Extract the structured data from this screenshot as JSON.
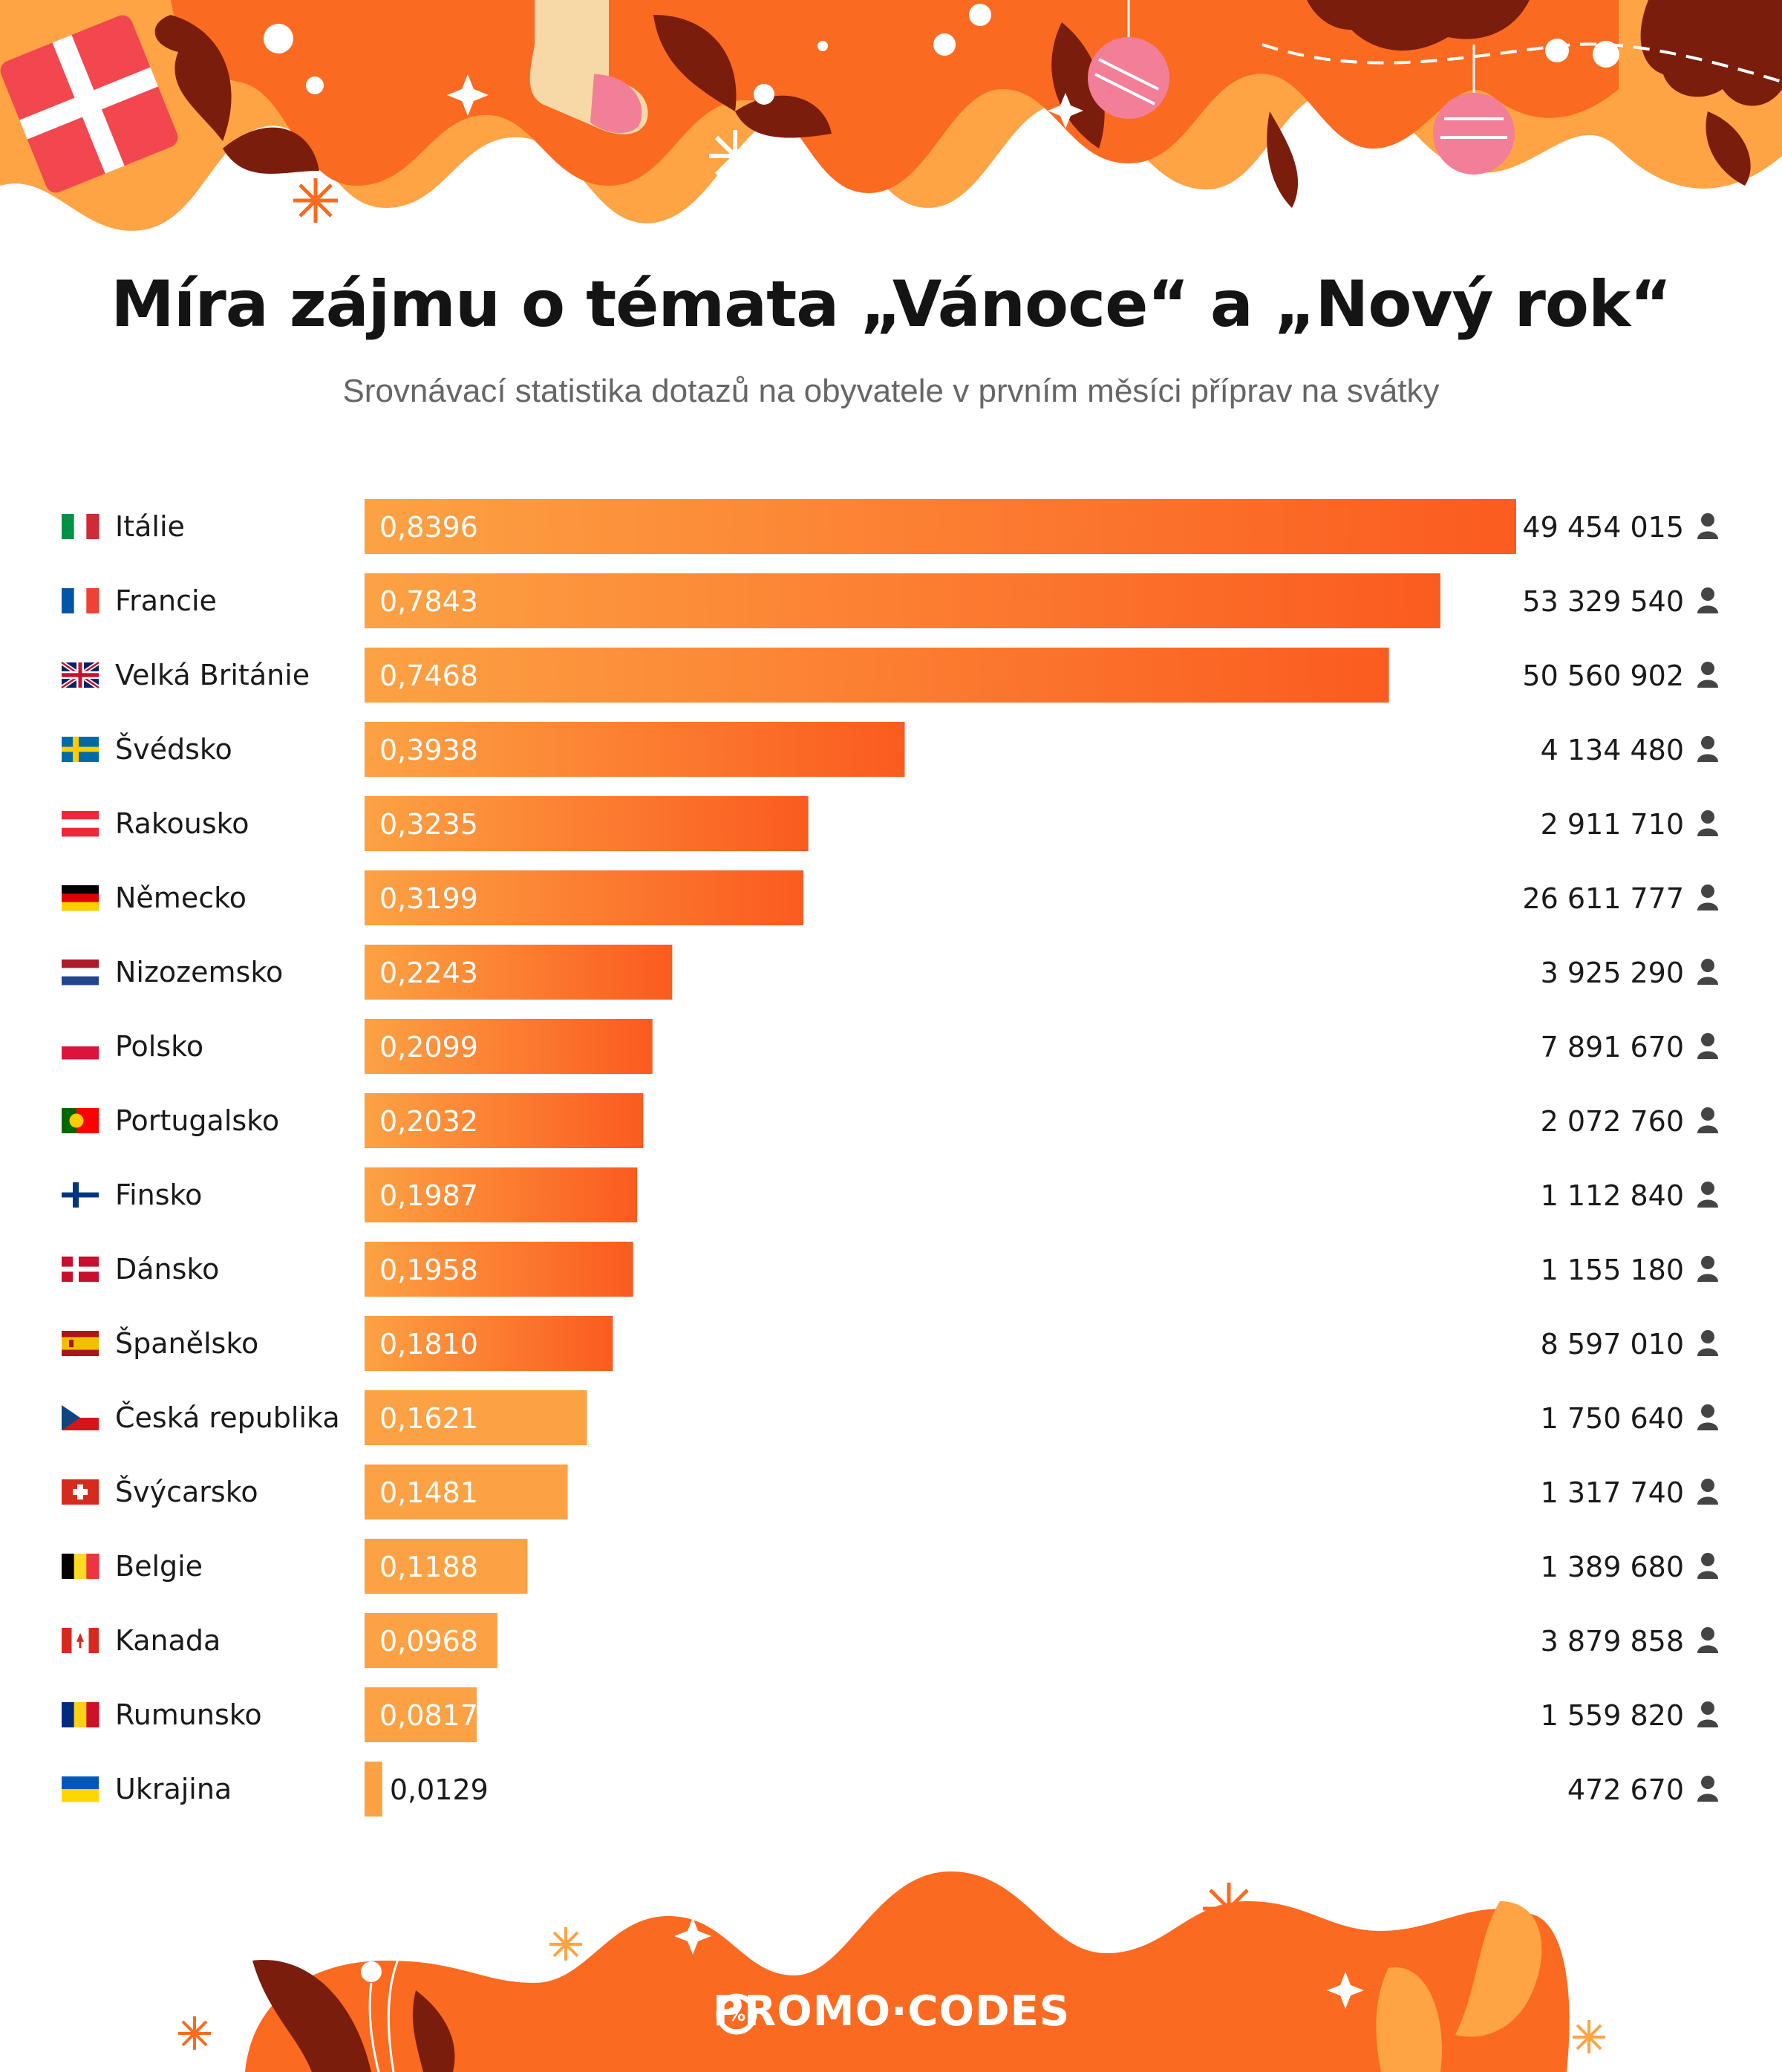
{
  "title": "Míra zájmu o témata „Vánoce“ a „Nový rok“",
  "subtitle": "Srovnávací statistika dotazů na obyvatele v prvním měsíci příprav na svátky",
  "brand": "PROMO·CODES",
  "icons": {
    "population": "person-icon"
  },
  "colors": {
    "bar_light": "#fca244",
    "bar_dark": "#fb5b1f",
    "accent_orange": "#fb6a21",
    "dark_red": "#7a1d0c",
    "light_orange": "#fea445"
  },
  "chart_data": {
    "type": "bar",
    "orientation": "horizontal",
    "title": "Míra zájmu o témata „Vánoce“ a „Nový rok“",
    "subtitle": "Srovnávací statistika dotazů na obyvatele v prvním měsíci příprav na svátky",
    "categories": [
      "Itálie",
      "Francie",
      "Velká Británie",
      "Švédsko",
      "Rakousko",
      "Německo",
      "Nizozemsko",
      "Polsko",
      "Portugalsko",
      "Finsko",
      "Dánsko",
      "Španělsko",
      "Česká republika",
      "Švýcarsko",
      "Belgie",
      "Kanada",
      "Rumunsko",
      "Ukrajina"
    ],
    "flags": [
      "it",
      "fr",
      "gb",
      "se",
      "at",
      "de",
      "nl",
      "pl",
      "pt",
      "fi",
      "dk",
      "es",
      "cz",
      "ch",
      "be",
      "ca",
      "ro",
      "ua"
    ],
    "values": [
      0.8396,
      0.7843,
      0.7468,
      0.3938,
      0.3235,
      0.3199,
      0.2243,
      0.2099,
      0.2032,
      0.1987,
      0.1958,
      0.181,
      0.1621,
      0.1481,
      0.1188,
      0.0968,
      0.0817,
      0.0129
    ],
    "value_labels": [
      "0,8396",
      "0,7843",
      "0,7468",
      "0,3938",
      "0,3235",
      "0,3199",
      "0,2243",
      "0,2099",
      "0,2032",
      "0,1987",
      "0,1958",
      "0,1810",
      "0,1621",
      "0,1481",
      "0,1188",
      "0,0968",
      "0,0817",
      "0,0129"
    ],
    "population": [
      "49 454 015",
      "53 329 540",
      "50 560 902",
      "4 134 480",
      "2 911 710",
      "26 611 777",
      "3 925 290",
      "7 891 670",
      "2 072 760",
      "1 112 840",
      "1 155 180",
      "8 597 010",
      "1 750 640",
      "1 317 740",
      "1 389 680",
      "3 879 858",
      "1 559 820",
      "472 670"
    ],
    "xlim": [
      0,
      0.8396
    ],
    "grid": false,
    "legend": "none"
  }
}
